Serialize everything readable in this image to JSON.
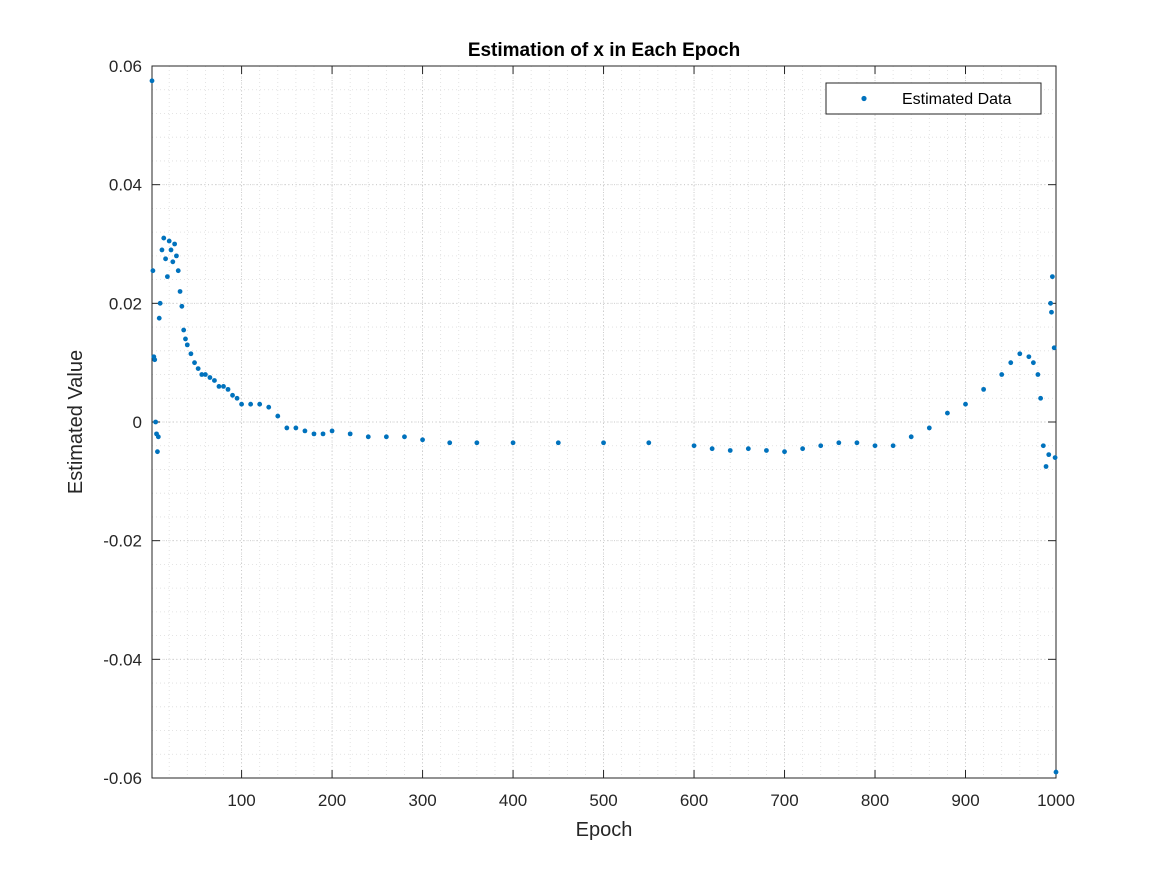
{
  "chart_data": {
    "type": "scatter",
    "title": "Estimation of x in Each Epoch",
    "xlabel": "Epoch",
    "ylabel": "Estimated Value",
    "xlim": [
      1,
      1000
    ],
    "ylim": [
      -0.06,
      0.06
    ],
    "xticks": [
      100,
      200,
      300,
      400,
      500,
      600,
      700,
      800,
      900,
      1000
    ],
    "xtick_labels": [
      "100",
      "200",
      "300",
      "400",
      "500",
      "600",
      "700",
      "800",
      "900",
      "1000"
    ],
    "yticks": [
      -0.06,
      -0.04,
      -0.02,
      0,
      0.02,
      0.04,
      0.06
    ],
    "ytick_labels": [
      "-0.06",
      "-0.04",
      "-0.02",
      "0",
      "0.02",
      "0.04",
      "0.06"
    ],
    "grid": "on (major and minor, dotted)",
    "legend_position": "top-right",
    "series": [
      {
        "name": "Estimated Data",
        "color": "#0072BD",
        "marker": "point",
        "x": [
          1,
          2,
          3,
          4,
          5,
          6,
          7,
          8,
          9,
          10,
          12,
          14,
          16,
          18,
          20,
          22,
          24,
          26,
          28,
          30,
          32,
          34,
          36,
          38,
          40,
          44,
          48,
          52,
          56,
          60,
          65,
          70,
          75,
          80,
          85,
          90,
          95,
          100,
          110,
          120,
          130,
          140,
          150,
          160,
          170,
          180,
          190,
          200,
          220,
          240,
          260,
          280,
          300,
          330,
          360,
          400,
          450,
          500,
          550,
          600,
          620,
          640,
          660,
          680,
          700,
          720,
          740,
          760,
          780,
          800,
          820,
          840,
          860,
          880,
          900,
          920,
          940,
          950,
          960,
          970,
          975,
          980,
          983,
          986,
          989,
          992,
          994,
          995,
          996,
          998,
          999,
          1000
        ],
        "y": [
          0.0575,
          0.0255,
          0.011,
          0.0105,
          0.0,
          -0.002,
          -0.005,
          -0.0025,
          0.0175,
          0.02,
          0.029,
          0.031,
          0.0275,
          0.0245,
          0.0305,
          0.029,
          0.027,
          0.03,
          0.028,
          0.0255,
          0.022,
          0.0195,
          0.0155,
          0.014,
          0.013,
          0.0115,
          0.01,
          0.009,
          0.008,
          0.008,
          0.0075,
          0.007,
          0.006,
          0.006,
          0.0055,
          0.0045,
          0.004,
          0.003,
          0.003,
          0.003,
          0.0025,
          0.001,
          -0.001,
          -0.001,
          -0.0015,
          -0.002,
          -0.002,
          -0.0015,
          -0.002,
          -0.0025,
          -0.0025,
          -0.0025,
          -0.003,
          -0.0035,
          -0.0035,
          -0.0035,
          -0.0035,
          -0.0035,
          -0.0035,
          -0.004,
          -0.0045,
          -0.0048,
          -0.0045,
          -0.0048,
          -0.005,
          -0.0045,
          -0.004,
          -0.0035,
          -0.0035,
          -0.004,
          -0.004,
          -0.0025,
          -0.001,
          0.0015,
          0.003,
          0.0055,
          0.008,
          0.01,
          0.0115,
          0.011,
          0.01,
          0.008,
          0.004,
          -0.004,
          -0.0075,
          -0.0055,
          0.02,
          0.0185,
          0.0245,
          0.0125,
          -0.006,
          -0.059
        ]
      }
    ]
  }
}
